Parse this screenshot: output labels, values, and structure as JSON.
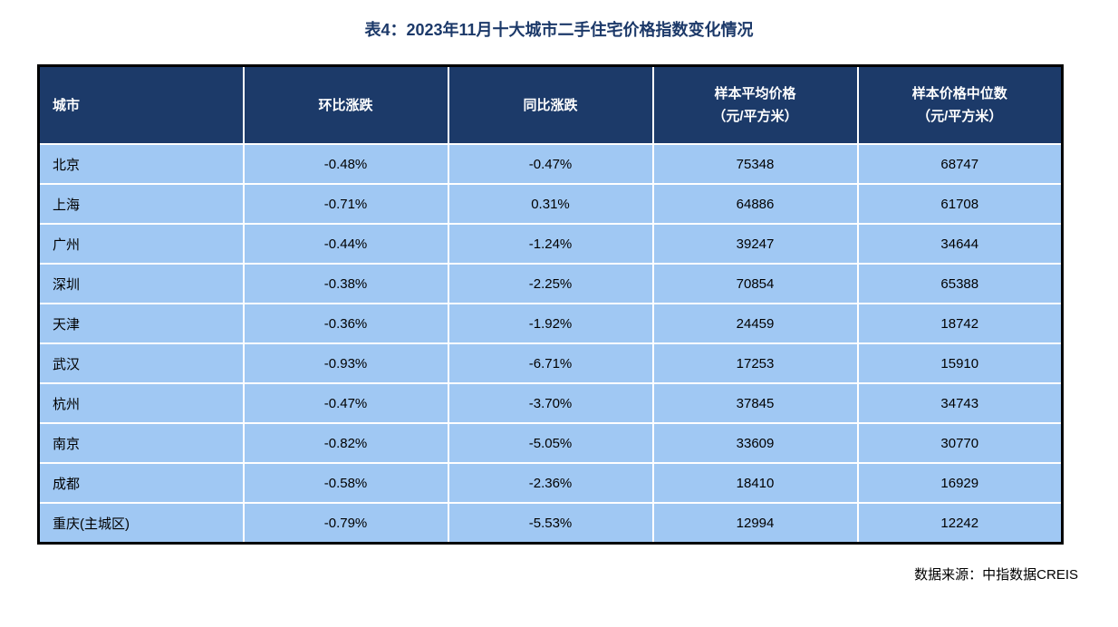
{
  "title": "表4：2023年11月十大城市二手住宅价格指数变化情况",
  "source": "数据来源：中指数据CREIS",
  "colors": {
    "header_bg": "#1C3A69",
    "header_text": "#FFFFFF",
    "row_bg": "#A0C8F3",
    "body_text": "#000000",
    "title_text": "#1C3969",
    "grid_line": "#FFFFFF",
    "outer_border": "#000000"
  },
  "table": {
    "columns": [
      {
        "line1": "城市",
        "line2": ""
      },
      {
        "line1": "环比涨跌",
        "line2": ""
      },
      {
        "line1": "同比涨跌",
        "line2": ""
      },
      {
        "line1": "样本平均价格",
        "line2": "（元/平方米）"
      },
      {
        "line1": "样本价格中位数",
        "line2": "（元/平方米）"
      }
    ],
    "rows": [
      {
        "city": "北京",
        "mom": "-0.48%",
        "yoy": "-0.47%",
        "avg_price": "75348",
        "median_price": "68747"
      },
      {
        "city": "上海",
        "mom": "-0.71%",
        "yoy": "0.31%",
        "avg_price": "64886",
        "median_price": "61708"
      },
      {
        "city": "广州",
        "mom": "-0.44%",
        "yoy": "-1.24%",
        "avg_price": "39247",
        "median_price": "34644"
      },
      {
        "city": "深圳",
        "mom": "-0.38%",
        "yoy": "-2.25%",
        "avg_price": "70854",
        "median_price": "65388"
      },
      {
        "city": "天津",
        "mom": "-0.36%",
        "yoy": "-1.92%",
        "avg_price": "24459",
        "median_price": "18742"
      },
      {
        "city": "武汉",
        "mom": "-0.93%",
        "yoy": "-6.71%",
        "avg_price": "17253",
        "median_price": "15910"
      },
      {
        "city": "杭州",
        "mom": "-0.47%",
        "yoy": "-3.70%",
        "avg_price": "37845",
        "median_price": "34743"
      },
      {
        "city": "南京",
        "mom": "-0.82%",
        "yoy": "-5.05%",
        "avg_price": "33609",
        "median_price": "30770"
      },
      {
        "city": "成都",
        "mom": "-0.58%",
        "yoy": "-2.36%",
        "avg_price": "18410",
        "median_price": "16929"
      },
      {
        "city": "重庆(主城区)",
        "mom": "-0.79%",
        "yoy": "-5.53%",
        "avg_price": "12994",
        "median_price": "12242"
      }
    ]
  },
  "chart_data": {
    "type": "table",
    "title": "表4：2023年11月十大城市二手住宅价格指数变化情况",
    "columns": [
      "城市",
      "环比涨跌",
      "同比涨跌",
      "样本平均价格（元/平方米）",
      "样本价格中位数（元/平方米）"
    ],
    "rows": [
      [
        "北京",
        "-0.48%",
        "-0.47%",
        75348,
        68747
      ],
      [
        "上海",
        "-0.71%",
        "0.31%",
        64886,
        61708
      ],
      [
        "广州",
        "-0.44%",
        "-1.24%",
        39247,
        34644
      ],
      [
        "深圳",
        "-0.38%",
        "-2.25%",
        70854,
        65388
      ],
      [
        "天津",
        "-0.36%",
        "-1.92%",
        24459,
        18742
      ],
      [
        "武汉",
        "-0.93%",
        "-6.71%",
        17253,
        15910
      ],
      [
        "杭州",
        "-0.47%",
        "-3.70%",
        37845,
        34743
      ],
      [
        "南京",
        "-0.82%",
        "-5.05%",
        33609,
        30770
      ],
      [
        "成都",
        "-0.58%",
        "-2.36%",
        18410,
        16929
      ],
      [
        "重庆(主城区)",
        "-0.79%",
        "-5.53%",
        12994,
        12242
      ]
    ],
    "source": "数据来源：中指数据CREIS"
  }
}
